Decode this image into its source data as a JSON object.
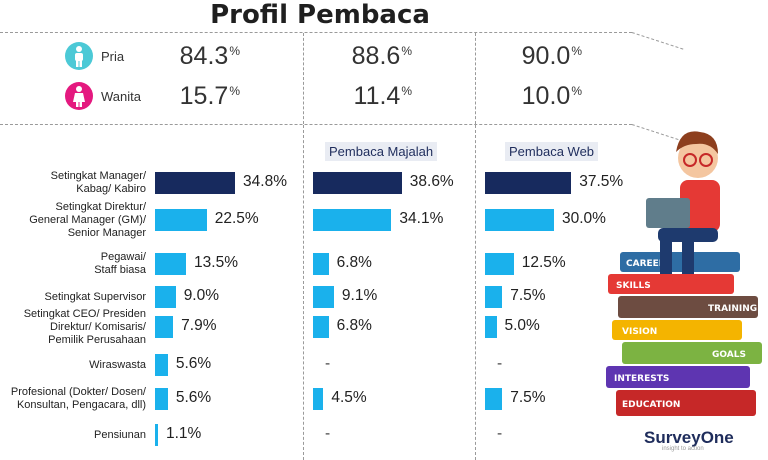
{
  "title": "Profil Pembaca",
  "gender": {
    "rows": [
      {
        "label": "Pria",
        "color": "#4cc9d6",
        "values": [
          "84.3",
          "88.6",
          "90.0"
        ]
      },
      {
        "label": "Wanita",
        "color": "#e4197f",
        "values": [
          "15.7",
          "11.4",
          "10.0"
        ]
      }
    ],
    "unit": "%"
  },
  "columns": [
    "",
    "Pembaca Majalah",
    "Pembaca Web"
  ],
  "logo": {
    "text": "SurveyOne",
    "sub": "insight to action"
  },
  "books": [
    "CAREER",
    "SKILLS",
    "TRAINING",
    "VISION",
    "GOALS",
    "INTERESTS",
    "EDUCATION"
  ],
  "chart_data": {
    "type": "bar",
    "orientation": "horizontal",
    "title": "Profil Pembaca",
    "categories": [
      "Setingkat Manager/ Kabag/ Kabiro",
      "Setingkat Direktur/ General Manager (GM)/ Senior Manager",
      "Pegawai/ Staff biasa",
      "Setingkat Supervisor",
      "Setingkat CEO/ Presiden Direktur/ Komisaris/ Pemilik Perusahaan",
      "Wiraswasta",
      "Profesional (Dokter/ Dosen/ Konsultan, Pengacara, dll)",
      "Pensiunan"
    ],
    "category_lines": [
      [
        "Setingkat Manager/",
        "Kabag/ Kabiro"
      ],
      [
        "Setingkat Direktur/",
        "General Manager (GM)/",
        "Senior Manager"
      ],
      [
        "Pegawai/",
        "Staff biasa"
      ],
      [
        "Setingkat Supervisor"
      ],
      [
        "Setingkat CEO/ Presiden",
        "Direktur/ Komisaris/",
        "Pemilik Perusahaan"
      ],
      [
        "Wiraswasta"
      ],
      [
        "Profesional (Dokter/ Dosen/",
        "Konsultan, Pengacara, dll)"
      ],
      [
        "Pensiunan"
      ]
    ],
    "series": [
      {
        "name": "",
        "values": [
          34.8,
          22.5,
          13.5,
          9.0,
          7.9,
          5.6,
          5.6,
          1.1
        ],
        "labels": [
          "34.8%",
          "22.5%",
          "13.5%",
          "9.0%",
          "7.9%",
          "5.6%",
          "5.6%",
          "1.1%"
        ]
      },
      {
        "name": "Pembaca Majalah",
        "values": [
          38.6,
          34.1,
          6.8,
          9.1,
          6.8,
          null,
          4.5,
          null
        ],
        "labels": [
          "38.6%",
          "34.1%",
          "6.8%",
          "9.1%",
          "6.8%",
          "-",
          "4.5%",
          "-"
        ]
      },
      {
        "name": "Pembaca Web",
        "values": [
          37.5,
          30.0,
          12.5,
          7.5,
          5.0,
          null,
          7.5,
          null
        ],
        "labels": [
          "37.5%",
          "30.0%",
          "12.5%",
          "7.5%",
          "5.0%",
          "-",
          "7.5%",
          "-"
        ]
      }
    ],
    "colors": {
      "highlight": "#172a5e",
      "bar": "#1ab1ec"
    }
  }
}
